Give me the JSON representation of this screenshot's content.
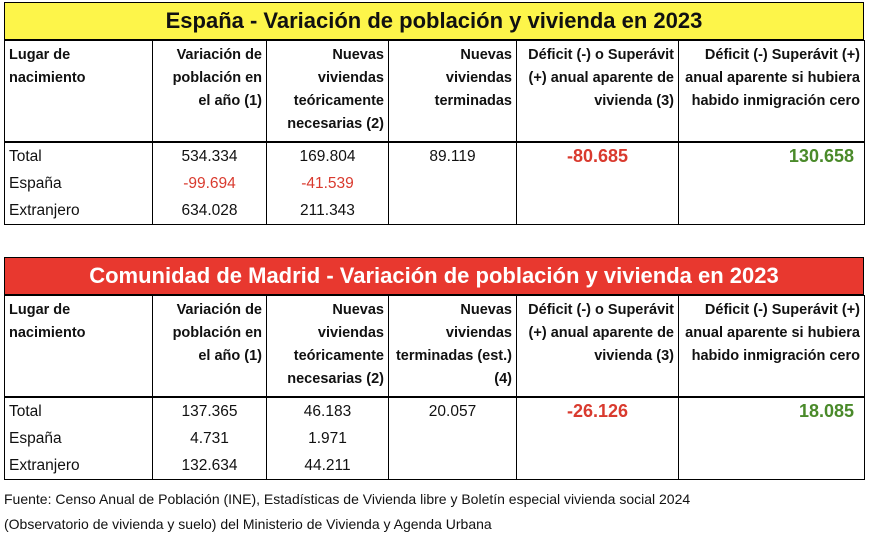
{
  "spain": {
    "title": "España - Variación de población y vivienda en 2023",
    "headers": [
      "Lugar de nacimiento",
      "Variación de población en el año (1)",
      "Nuevas viviendas teóricamente necesarias (2)",
      "Nuevas viviendas terminadas",
      "Déficit (-) o Superávit (+) anual aparente de vivienda (3)",
      "Déficit (-) Superávit (+) anual aparente si hubiera habido inmigración cero"
    ],
    "rows": [
      {
        "label": "Total",
        "variation": "534.334",
        "needed": "169.804",
        "completed": "89.119",
        "deficit": "-80.685",
        "zero_immigration": "130.658"
      },
      {
        "label": "España",
        "variation": "-99.694",
        "needed": "-41.539",
        "completed": "",
        "deficit": "",
        "zero_immigration": ""
      },
      {
        "label": "Extranjero",
        "variation": "634.028",
        "needed": "211.343",
        "completed": "",
        "deficit": "",
        "zero_immigration": ""
      }
    ]
  },
  "madrid": {
    "title": "Comunidad de Madrid - Variación de población y vivienda en 2023",
    "headers": [
      "Lugar de nacimiento",
      "Variación de población en el año (1)",
      "Nuevas viviendas teóricamente necesarias (2)",
      "Nuevas viviendas terminadas (est.) (4)",
      "Déficit (-) o Superávit (+) anual aparente de vivienda (3)",
      "Déficit (-) Superávit (+) anual aparente si hubiera habido inmigración cero"
    ],
    "rows": [
      {
        "label": "Total",
        "variation": "137.365",
        "needed": "46.183",
        "completed": "20.057",
        "deficit": "-26.126",
        "zero_immigration": "18.085"
      },
      {
        "label": "España",
        "variation": "4.731",
        "needed": "1.971",
        "completed": "",
        "deficit": "",
        "zero_immigration": ""
      },
      {
        "label": "Extranjero",
        "variation": "132.634",
        "needed": "44.211",
        "completed": "",
        "deficit": "",
        "zero_immigration": ""
      }
    ]
  },
  "source_line1": "Fuente: Censo Anual de Población (INE), Estadísticas de Vivienda libre y Boletín especial vivienda social 2024",
  "source_line2": "(Observatorio de vivienda y suelo) del Ministerio de Vivienda y Agenda Urbana",
  "colors": {
    "title1_bg": "#fdf54a",
    "title2_bg": "#e8382f",
    "deficit": "#d93a2e",
    "surplus": "#4a8a2a"
  }
}
